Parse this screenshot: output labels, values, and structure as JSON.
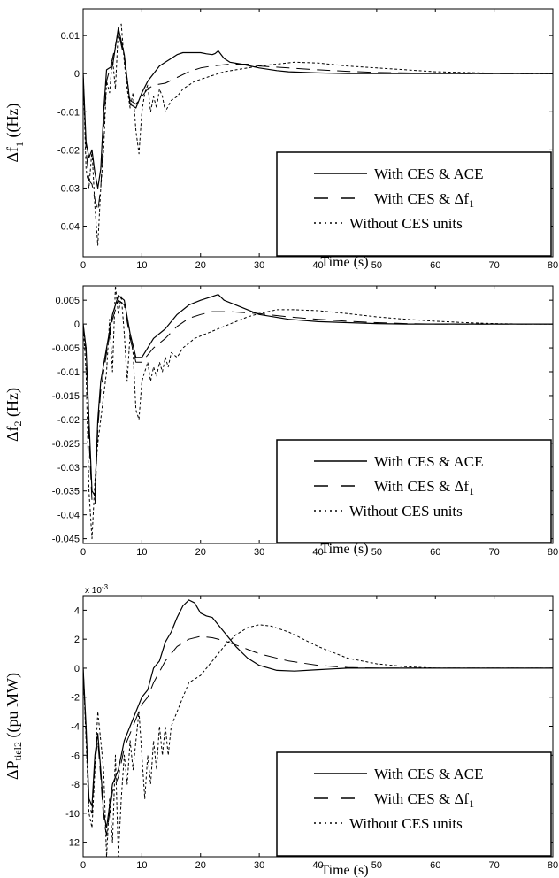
{
  "chart_data": [
    {
      "type": "line",
      "ylabel_main": "Δf",
      "ylabel_sub": "1",
      "ylabel_unit": " ((Hz)",
      "xlabel": "Time (s)",
      "xlim": [
        0,
        80
      ],
      "ylim": [
        -0.048,
        0.017
      ],
      "xticks": [
        "0",
        "10",
        "20",
        "30",
        "40",
        "50",
        "60",
        "70",
        "80"
      ],
      "yticks": [
        {
          "v": 0.01,
          "label": "0.01"
        },
        {
          "v": 0,
          "label": "0"
        },
        {
          "v": -0.01,
          "label": "-0.01"
        },
        {
          "v": -0.02,
          "label": "-0.02"
        },
        {
          "v": -0.03,
          "label": "-0.03"
        },
        {
          "v": -0.04,
          "label": "-0.04"
        }
      ],
      "legend_position": "lower-right",
      "series": [
        {
          "name": "With CES & ACE",
          "style": "solid",
          "x": [
            0,
            0.5,
            1,
            1.5,
            2,
            2.5,
            3,
            3.5,
            4,
            5,
            6,
            7,
            8,
            9,
            10,
            11,
            12,
            13,
            14,
            15,
            16,
            17,
            18,
            19,
            20,
            21,
            22,
            22.5,
            23,
            24,
            25,
            27,
            30,
            33,
            35,
            40,
            45,
            50,
            55,
            60,
            65,
            70,
            75,
            80
          ],
          "y": [
            0,
            -0.018,
            -0.022,
            -0.02,
            -0.026,
            -0.03,
            -0.025,
            -0.01,
            0.001,
            0.002,
            0.012,
            0.005,
            -0.008,
            -0.009,
            -0.005,
            -0.002,
            0,
            0.002,
            0.003,
            0.004,
            0.005,
            0.0055,
            0.0055,
            0.0055,
            0.0055,
            0.0052,
            0.005,
            0.0053,
            0.006,
            0.004,
            0.003,
            0.0025,
            0.0015,
            0.0008,
            0.0005,
            0.0002,
            0,
            0,
            0,
            0,
            0,
            0,
            0,
            0
          ]
        },
        {
          "name": "With CES & Δf1",
          "style": "dashed",
          "x": [
            0,
            0.5,
            1,
            1.5,
            2,
            2.5,
            3,
            3.5,
            4,
            5,
            6,
            7,
            8,
            9,
            10,
            11,
            12,
            14,
            16,
            18,
            20,
            22,
            25,
            28,
            30,
            35,
            40,
            45,
            50,
            55,
            60,
            65,
            70,
            75,
            80
          ],
          "y": [
            0,
            -0.02,
            -0.028,
            -0.029,
            -0.033,
            -0.036,
            -0.03,
            -0.015,
            -0.002,
            0.004,
            0.011,
            0.004,
            -0.007,
            -0.008,
            -0.006,
            -0.004,
            -0.003,
            -0.0025,
            -0.001,
            0.0005,
            0.0015,
            0.002,
            0.0025,
            0.0025,
            0.002,
            0.0015,
            0.001,
            0.0006,
            0.0003,
            0.0002,
            0.0001,
            0,
            0,
            0,
            0
          ]
        },
        {
          "name": "Without CES units",
          "style": "dotted",
          "x": [
            0,
            0.5,
            1,
            1.5,
            2,
            2.5,
            3,
            3.5,
            4,
            4.5,
            5,
            5.5,
            6,
            6.5,
            7,
            7.5,
            8,
            8.5,
            9,
            9.5,
            10,
            10.5,
            11,
            11.5,
            12,
            12.5,
            13,
            13.5,
            14,
            15,
            16,
            17,
            18,
            19,
            20,
            22,
            24,
            26,
            28,
            30,
            33,
            36,
            40,
            45,
            50,
            55,
            60,
            65,
            70,
            75,
            80
          ],
          "y": [
            0,
            -0.025,
            -0.03,
            -0.02,
            -0.035,
            -0.045,
            -0.03,
            -0.02,
            -0.002,
            -0.005,
            0.004,
            -0.004,
            0.012,
            0.013,
            0.003,
            -0.004,
            -0.009,
            -0.005,
            -0.015,
            -0.021,
            -0.01,
            -0.005,
            -0.003,
            -0.01,
            -0.006,
            -0.009,
            -0.004,
            -0.006,
            -0.01,
            -0.007,
            -0.006,
            -0.004,
            -0.003,
            -0.002,
            -0.0015,
            -0.0005,
            0.0005,
            0.001,
            0.0015,
            0.002,
            0.0025,
            0.003,
            0.0028,
            0.002,
            0.0015,
            0.001,
            0.0005,
            0.0003,
            0.0001,
            0,
            0
          ]
        }
      ]
    },
    {
      "type": "line",
      "ylabel_main": "Δf",
      "ylabel_sub": "2",
      "ylabel_unit": " (Hz)",
      "xlabel": "Time (s)",
      "xlim": [
        0,
        80
      ],
      "ylim": [
        -0.046,
        0.008
      ],
      "xticks": [
        "0",
        "10",
        "20",
        "30",
        "40",
        "50",
        "60",
        "70",
        "80"
      ],
      "yticks": [
        {
          "v": 0.005,
          "label": "0.005"
        },
        {
          "v": 0,
          "label": "0"
        },
        {
          "v": -0.005,
          "label": "-0.005"
        },
        {
          "v": -0.01,
          "label": "-0.01"
        },
        {
          "v": -0.015,
          "label": "-0.015"
        },
        {
          "v": -0.02,
          "label": "-0.02"
        },
        {
          "v": -0.025,
          "label": "-0.025"
        },
        {
          "v": -0.03,
          "label": "-0.03"
        },
        {
          "v": -0.035,
          "label": "-0.035"
        },
        {
          "v": -0.04,
          "label": "-0.04"
        },
        {
          "v": -0.045,
          "label": "-0.045"
        }
      ],
      "legend_position": "lower-right",
      "series": [
        {
          "name": "With CES & ACE",
          "style": "solid",
          "x": [
            0,
            0.5,
            1,
            1.5,
            2,
            2.5,
            3,
            4,
            5,
            6,
            7,
            8,
            9,
            10,
            11,
            12,
            14,
            16,
            18,
            20,
            22,
            23,
            24,
            26,
            28,
            30,
            35,
            40,
            45,
            50,
            55,
            60,
            65,
            70,
            75,
            80
          ],
          "y": [
            0,
            -0.005,
            -0.02,
            -0.035,
            -0.036,
            -0.02,
            -0.012,
            -0.005,
            0.002,
            0.006,
            0.005,
            -0.002,
            -0.007,
            -0.007,
            -0.005,
            -0.003,
            -0.001,
            0.002,
            0.004,
            0.005,
            0.0058,
            0.0062,
            0.005,
            0.004,
            0.003,
            0.002,
            0.001,
            0.0005,
            0.0003,
            0.0001,
            0,
            0,
            0,
            0,
            0,
            0
          ]
        },
        {
          "name": "With CES & Δf1",
          "style": "dashed",
          "x": [
            0,
            0.5,
            1,
            1.5,
            2,
            2.5,
            3,
            4,
            5,
            6,
            7,
            8,
            9,
            10,
            12,
            14,
            16,
            18,
            20,
            22,
            25,
            30,
            35,
            40,
            45,
            50,
            55,
            60,
            65,
            70,
            75,
            80
          ],
          "y": [
            0,
            -0.006,
            -0.024,
            -0.037,
            -0.038,
            -0.022,
            -0.014,
            -0.006,
            0.001,
            0.005,
            0.004,
            -0.003,
            -0.008,
            -0.008,
            -0.005,
            -0.003,
            -0.0005,
            0.0012,
            0.002,
            0.0026,
            0.0026,
            0.0022,
            0.0015,
            0.001,
            0.0006,
            0.0003,
            0.0001,
            0,
            0,
            0,
            0,
            0
          ]
        },
        {
          "name": "Without CES units",
          "style": "dotted",
          "x": [
            0,
            0.5,
            1,
            1.5,
            2,
            2.5,
            3,
            3.5,
            4,
            4.5,
            5,
            5.5,
            6,
            6.5,
            7,
            7.5,
            8,
            8.5,
            9,
            9.5,
            10,
            10.5,
            11,
            11.5,
            12,
            12.5,
            13,
            13.5,
            14,
            14.5,
            15,
            16,
            17,
            18,
            19,
            20,
            22,
            24,
            26,
            28,
            30,
            33,
            36,
            40,
            45,
            50,
            55,
            60,
            65,
            70,
            75,
            80
          ],
          "y": [
            0,
            -0.01,
            -0.035,
            -0.045,
            -0.033,
            -0.025,
            -0.02,
            -0.015,
            -0.01,
            0.001,
            -0.01,
            0.008,
            0.002,
            0.006,
            -0.002,
            -0.012,
            -0.002,
            -0.006,
            -0.018,
            -0.02,
            -0.012,
            -0.01,
            -0.008,
            -0.012,
            -0.009,
            -0.011,
            -0.008,
            -0.01,
            -0.007,
            -0.009,
            -0.006,
            -0.007,
            -0.005,
            -0.004,
            -0.003,
            -0.0025,
            -0.0015,
            -0.0005,
            0.0005,
            0.0015,
            0.0022,
            0.003,
            0.003,
            0.0028,
            0.0022,
            0.0015,
            0.001,
            0.0006,
            0.0003,
            0.0001,
            0,
            0
          ]
        }
      ]
    },
    {
      "type": "line",
      "ylabel_main": "ΔP",
      "ylabel_sub": "tiel2",
      "ylabel_unit": " ((pu MW)",
      "exponent_label": "x 10",
      "exponent_power": "-3",
      "xlabel": "Time (s)",
      "xlim": [
        0,
        80
      ],
      "ylim": [
        -13,
        5
      ],
      "xticks": [
        "0",
        "10",
        "20",
        "30",
        "40",
        "50",
        "60",
        "70",
        "80"
      ],
      "yticks": [
        {
          "v": 4,
          "label": "4"
        },
        {
          "v": 2,
          "label": "2"
        },
        {
          "v": 0,
          "label": "0"
        },
        {
          "v": -2,
          "label": "-2"
        },
        {
          "v": -4,
          "label": "-4"
        },
        {
          "v": -6,
          "label": "-6"
        },
        {
          "v": -8,
          "label": "-8"
        },
        {
          "v": -10,
          "label": "-10"
        },
        {
          "v": -12,
          "label": "-12"
        }
      ],
      "legend_position": "lower-right",
      "series": [
        {
          "name": "With CES & ACE",
          "style": "solid",
          "x": [
            0,
            0.5,
            1,
            1.5,
            2,
            2.5,
            3,
            3.5,
            4,
            5,
            6,
            7,
            8,
            9,
            10,
            11,
            12,
            13,
            14,
            15,
            16,
            17,
            18,
            19,
            20,
            21,
            22,
            24,
            26,
            28,
            30,
            33,
            36,
            40,
            45,
            50,
            55,
            60,
            65,
            70,
            75,
            80
          ],
          "y": [
            0,
            -4,
            -9,
            -9.5,
            -6,
            -4.5,
            -7,
            -10,
            -11,
            -8,
            -7,
            -5,
            -4,
            -3,
            -2,
            -1.5,
            0,
            0.5,
            1.8,
            2.5,
            3.5,
            4.3,
            4.7,
            4.5,
            3.8,
            3.6,
            3.5,
            2.5,
            1.5,
            0.7,
            0.2,
            -0.15,
            -0.2,
            -0.1,
            0,
            0,
            0,
            0,
            0,
            0,
            0,
            0
          ]
        },
        {
          "name": "With CES & Δf1",
          "style": "dashed",
          "x": [
            0,
            0.5,
            1,
            1.5,
            2,
            2.5,
            3,
            3.5,
            4,
            5,
            6,
            7,
            8,
            9,
            10,
            11,
            12,
            14,
            16,
            18,
            20,
            22,
            24,
            26,
            28,
            30,
            35,
            40,
            45,
            50,
            55,
            60,
            65,
            70,
            75,
            80
          ],
          "y": [
            0,
            -4.5,
            -9.5,
            -10,
            -6.5,
            -5,
            -7.5,
            -10.5,
            -11.5,
            -8.5,
            -7.5,
            -5.5,
            -4.5,
            -3.5,
            -2.5,
            -2,
            -1,
            0.5,
            1.5,
            2,
            2.2,
            2.1,
            1.9,
            1.6,
            1.3,
            1,
            0.5,
            0.2,
            0.05,
            0,
            0,
            0,
            0,
            0,
            0,
            0
          ]
        },
        {
          "name": "Without CES units",
          "style": "dotted",
          "x": [
            0,
            0.5,
            1,
            1.5,
            2,
            2.5,
            3,
            3.5,
            4,
            4.5,
            5,
            5.5,
            6,
            6.5,
            7,
            7.5,
            8,
            8.5,
            9,
            9.5,
            10,
            10.5,
            11,
            11.5,
            12,
            12.5,
            13,
            13.5,
            14,
            14.5,
            15,
            16,
            17,
            18,
            20,
            22,
            24,
            26,
            28,
            30,
            32,
            35,
            38,
            40,
            45,
            50,
            55,
            60,
            65,
            70,
            75,
            80
          ],
          "y": [
            0,
            -5,
            -10,
            -11,
            -7,
            -3,
            -5,
            -7,
            -13,
            -9,
            -12,
            -6,
            -13,
            -9,
            -6,
            -8,
            -5,
            -7,
            -5,
            -3,
            -6,
            -9,
            -6,
            -8,
            -5,
            -7,
            -4,
            -6,
            -4,
            -6,
            -4,
            -3,
            -2,
            -1,
            -0.5,
            0.5,
            1.5,
            2.3,
            2.8,
            3,
            2.9,
            2.5,
            1.9,
            1.5,
            0.7,
            0.3,
            0.1,
            0,
            0,
            0,
            0,
            0
          ]
        }
      ]
    }
  ]
}
